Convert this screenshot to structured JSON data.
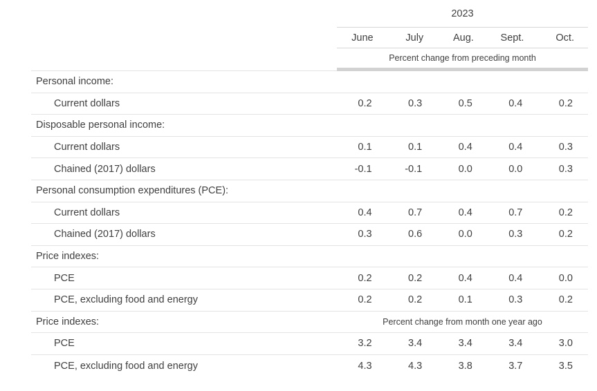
{
  "chart_data": {
    "type": "table",
    "year_header": "2023",
    "months": [
      "June",
      "July",
      "Aug.",
      "Sept.",
      "Oct."
    ],
    "unit_row_label": "Percent change from preceding month",
    "rows": [
      {
        "label": "Personal income:",
        "type": "category"
      },
      {
        "label": "Current dollars",
        "type": "data",
        "values": [
          "0.2",
          "0.3",
          "0.5",
          "0.4",
          "0.2"
        ]
      },
      {
        "label": "Disposable personal income:",
        "type": "category"
      },
      {
        "label": "Current dollars",
        "type": "data",
        "values": [
          "0.1",
          "0.1",
          "0.4",
          "0.4",
          "0.3"
        ]
      },
      {
        "label": "Chained (2017) dollars",
        "type": "data",
        "values": [
          "-0.1",
          "-0.1",
          "0.0",
          "0.0",
          "0.3"
        ]
      },
      {
        "label": "Personal consumption expenditures (PCE):",
        "type": "category"
      },
      {
        "label": "Current dollars",
        "type": "data",
        "values": [
          "0.4",
          "0.7",
          "0.4",
          "0.7",
          "0.2"
        ]
      },
      {
        "label": "Chained (2017) dollars",
        "type": "data",
        "values": [
          "0.3",
          "0.6",
          "0.0",
          "0.3",
          "0.2"
        ]
      },
      {
        "label": "Price indexes:",
        "type": "category"
      },
      {
        "label": "PCE",
        "type": "data",
        "values": [
          "0.2",
          "0.2",
          "0.4",
          "0.4",
          "0.0"
        ]
      },
      {
        "label": "PCE, excluding food and energy",
        "type": "data",
        "values": [
          "0.2",
          "0.2",
          "0.1",
          "0.3",
          "0.2"
        ]
      },
      {
        "label": "Price indexes:",
        "type": "category",
        "note": "Percent change from month one year ago"
      },
      {
        "label": "PCE",
        "type": "data",
        "values": [
          "3.2",
          "3.4",
          "3.4",
          "3.4",
          "3.0"
        ]
      },
      {
        "label": "PCE, excluding food and energy",
        "type": "data",
        "values": [
          "4.3",
          "4.3",
          "3.8",
          "3.7",
          "3.5"
        ]
      }
    ]
  }
}
